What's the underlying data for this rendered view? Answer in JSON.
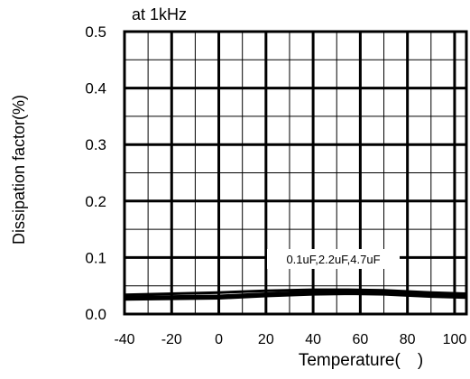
{
  "chart_data": {
    "type": "line",
    "title": "at 1kHz",
    "xlabel": "Temperature(　)",
    "ylabel": "Dissipation factor(%)",
    "xlim": [
      -40,
      105
    ],
    "ylim": [
      0.0,
      0.5
    ],
    "x_ticks": [
      -40,
      -20,
      0,
      20,
      40,
      60,
      80,
      100
    ],
    "x_tick_labels": [
      "-40",
      "-20",
      "0",
      "20",
      "40",
      "60",
      "80",
      "100"
    ],
    "y_ticks": [
      0.0,
      0.1,
      0.2,
      0.3,
      0.4,
      0.5
    ],
    "y_tick_labels": [
      "0.0",
      "0.1",
      "0.2",
      "0.3",
      "0.4",
      "0.5"
    ],
    "grid": true,
    "annotation": "0.1uF,2.2uF,4.7uF",
    "series": [
      {
        "values_x": [
          -40,
          -20,
          0,
          20,
          40,
          55,
          70,
          90,
          105
        ],
        "values_y": [
          0.03,
          0.031,
          0.032,
          0.036,
          0.039,
          0.04,
          0.039,
          0.035,
          0.033
        ]
      },
      {
        "values_x": [
          -40,
          -20,
          0,
          20,
          40,
          55,
          70,
          90,
          105
        ],
        "values_y": [
          0.026,
          0.027,
          0.028,
          0.032,
          0.035,
          0.036,
          0.035,
          0.031,
          0.029
        ]
      },
      {
        "values_x": [
          -40,
          -20,
          0,
          20,
          40,
          55,
          70,
          90,
          105
        ],
        "values_y": [
          0.034,
          0.036,
          0.038,
          0.041,
          0.043,
          0.043,
          0.042,
          0.038,
          0.036
        ]
      }
    ]
  }
}
